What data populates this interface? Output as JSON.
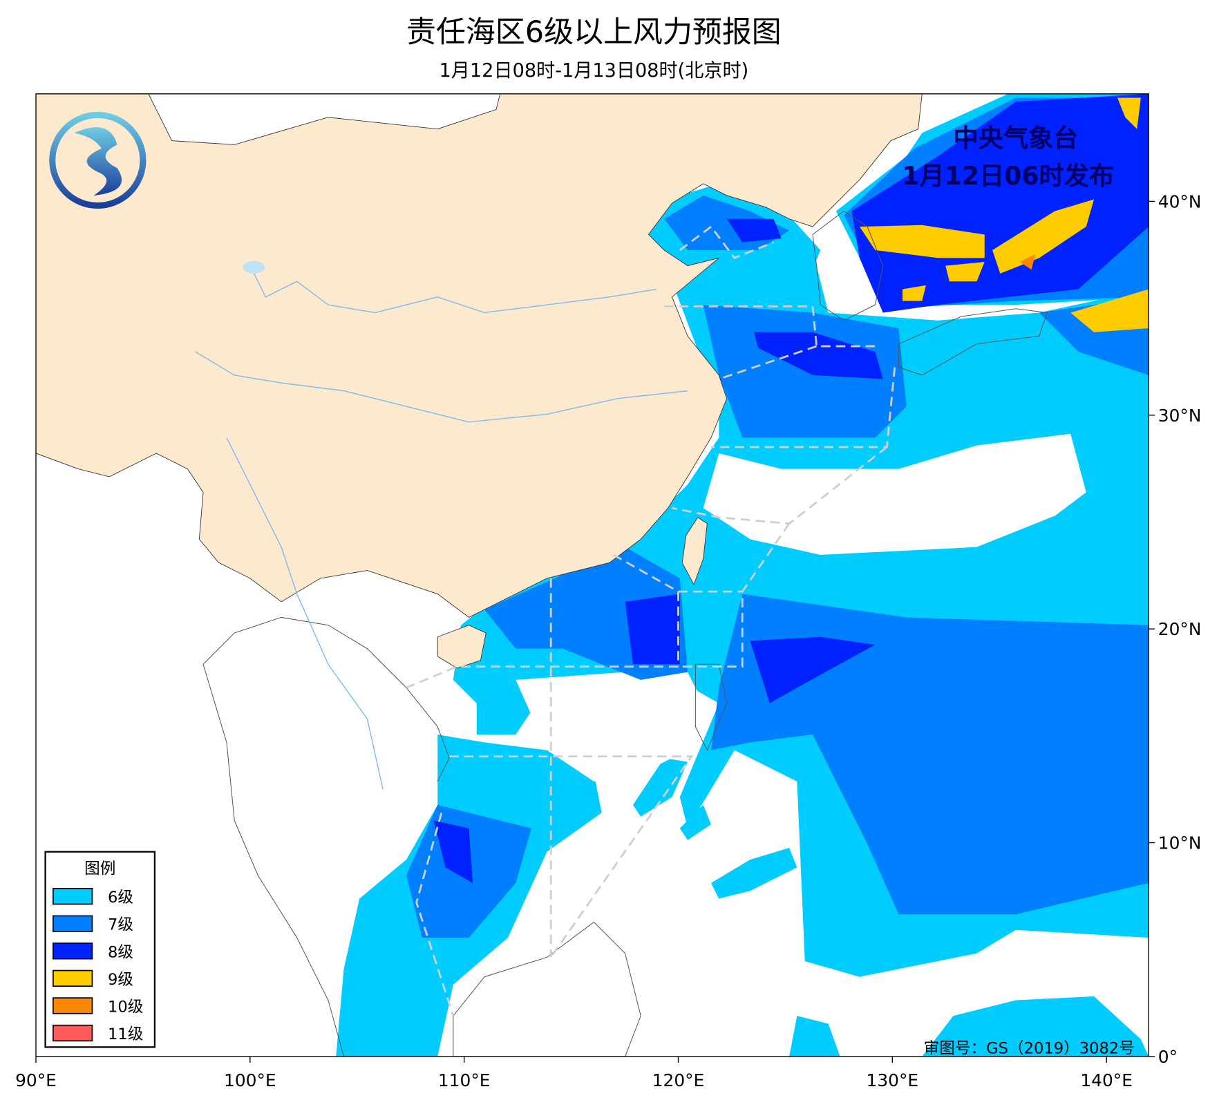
{
  "title": "责任海区6级以上风力预报图",
  "subtitle": "1月12日08时-1月13日08时(北京时)",
  "agency": {
    "name": "中央气象台",
    "issued": "1月12日06时发布"
  },
  "copyright": "审图号：GS（2019）3082号",
  "legend": {
    "title": "图例",
    "items": [
      {
        "label": "6级",
        "color": "#00ccff"
      },
      {
        "label": "7级",
        "color": "#0080ff"
      },
      {
        "label": "8级",
        "color": "#0022ff"
      },
      {
        "label": "9级",
        "color": "#ffcc00"
      },
      {
        "label": "10级",
        "color": "#ff8800"
      },
      {
        "label": "11级",
        "color": "#ff5b5b"
      }
    ]
  },
  "axes": {
    "x_ticks": [
      "90°E",
      "100°E",
      "110°E",
      "120°E",
      "130°E",
      "140°E"
    ],
    "y_ticks": [
      "40°N",
      "30°N",
      "20°N",
      "10°N",
      "0°"
    ]
  },
  "colors": {
    "land_china": "#fde9cd",
    "sea_area_lines": "#cfcfcf",
    "agency_text": "#000066"
  }
}
